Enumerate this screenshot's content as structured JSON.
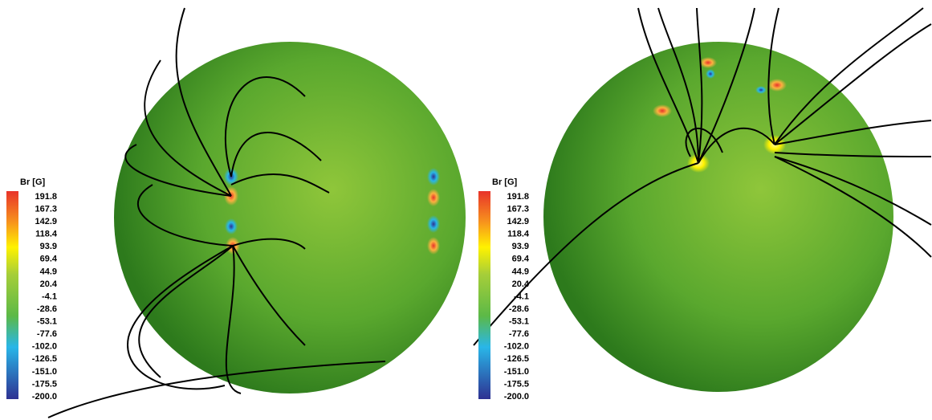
{
  "panels": [
    {
      "colorbar": {
        "title": "Br [G]",
        "labels": [
          "191.8",
          "167.3",
          "142.9",
          "118.4",
          "93.9",
          "69.4",
          "44.9",
          "20.4",
          "-4.1",
          "-28.6",
          "-53.1",
          "-77.6",
          "-102.0",
          "-126.5",
          "-151.0",
          "-175.5",
          "-200.0"
        ]
      }
    },
    {
      "colorbar": {
        "title": "Br [G]",
        "labels": [
          "191.8",
          "167.3",
          "142.9",
          "118.4",
          "93.9",
          "69.4",
          "44.9",
          "20.4",
          "-4.1",
          "-28.6",
          "-53.1",
          "-77.6",
          "-102.0",
          "-126.5",
          "-151.0",
          "-175.5",
          "-200.0"
        ]
      }
    }
  ]
}
